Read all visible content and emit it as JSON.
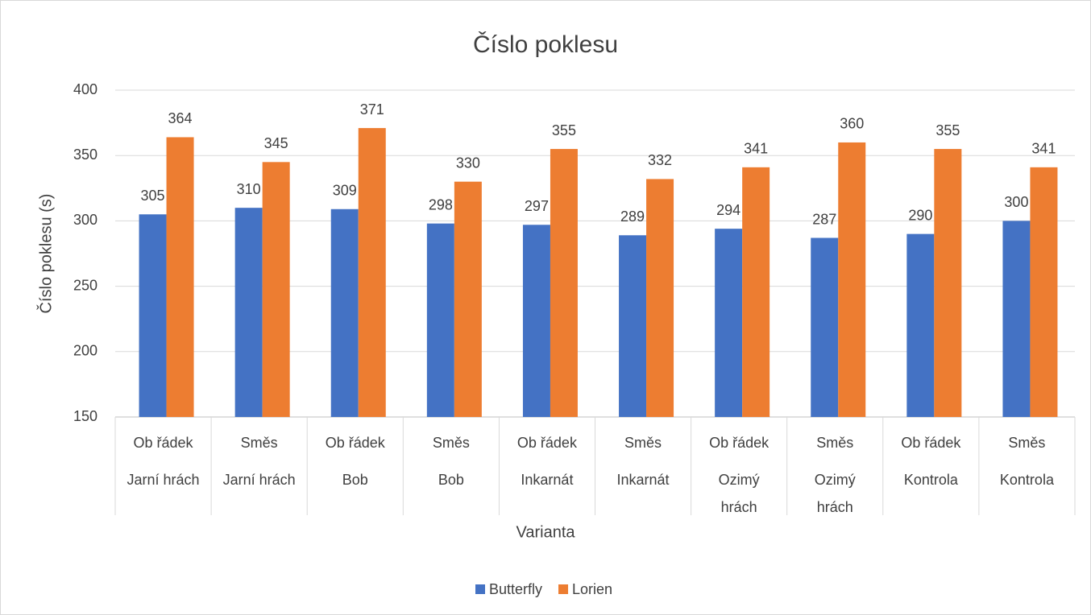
{
  "chart_data": {
    "type": "bar",
    "title": "Číslo poklesu",
    "x_label": "Varianta",
    "y_label": "Číslo poklesu (s)",
    "categories": [
      "Ob řádek",
      "Směs",
      "Ob řádek",
      "Směs",
      "Ob řádek",
      "Směs",
      "Ob řádek",
      "Směs",
      "Ob řádek",
      "Směs"
    ],
    "groups": [
      "Jarní hrách",
      "Jarní hrách",
      "Bob",
      "Bob",
      "Inkarnát",
      "Inkarnát",
      "Ozimý hrách",
      "Ozimý hrách",
      "Kontrola",
      "Kontrola"
    ],
    "series": [
      {
        "name": "Butterfly",
        "color": "#4472c4",
        "values": [
          305,
          310,
          309,
          298,
          297,
          289,
          294,
          287,
          290,
          300
        ]
      },
      {
        "name": "Lorien",
        "color": "#ed7d31",
        "values": [
          364,
          345,
          371,
          330,
          355,
          332,
          341,
          360,
          355,
          341
        ]
      }
    ],
    "ylim": [
      150,
      400
    ],
    "yticks": [
      150,
      200,
      250,
      300,
      350,
      400
    ],
    "grid": true,
    "legend": "bottom"
  }
}
